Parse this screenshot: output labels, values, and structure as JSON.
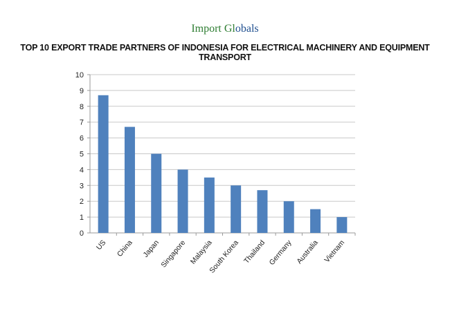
{
  "logo": {
    "text_a": "Import Gl",
    "text_b": "obals"
  },
  "chart_data": {
    "type": "bar",
    "title": "TOP 10 EXPORT TRADE PARTNERS OF INDONESIA FOR ELECTRICAL MACHINERY AND EQUIPMENT TRANSPORT",
    "categories": [
      "US",
      "China",
      "Japan",
      "Singapore",
      "Malaysia",
      "South Korea",
      "Thailand",
      "Germany",
      "Australia",
      "Vietnam"
    ],
    "values": [
      8.7,
      6.7,
      5,
      4,
      3.5,
      3,
      2.7,
      2,
      1.5,
      1
    ],
    "xlabel": "",
    "ylabel": "",
    "ylim": [
      0,
      10
    ],
    "yticks": [
      "0",
      "1",
      "2",
      "3",
      "4",
      "5",
      "6",
      "7",
      "8",
      "9",
      "10"
    ],
    "grid": true,
    "bar_color": "#4f81bd"
  }
}
